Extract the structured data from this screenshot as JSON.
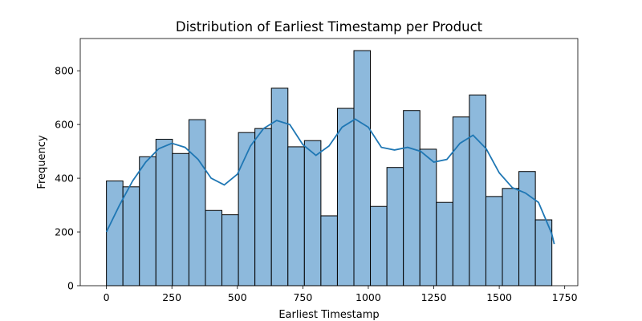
{
  "chart_data": {
    "type": "bar",
    "subtype": "histogram_with_kde",
    "title": "Distribution of Earliest Timestamp per Product",
    "xlabel": "Earliest Timestamp",
    "ylabel": "Frequency",
    "xlim": [
      -100,
      1800
    ],
    "ylim": [
      0,
      920
    ],
    "xticks": [
      0,
      250,
      500,
      750,
      1000,
      1250,
      1500,
      1750
    ],
    "yticks": [
      0,
      200,
      400,
      600,
      800
    ],
    "grid": false,
    "bin_edges": [
      0,
      63,
      126,
      189,
      252,
      315,
      378,
      441,
      504,
      567,
      630,
      693,
      756,
      819,
      882,
      945,
      1008,
      1071,
      1134,
      1197,
      1260,
      1323,
      1386,
      1449,
      1512,
      1575,
      1638,
      1701
    ],
    "values": [
      390,
      368,
      480,
      545,
      492,
      618,
      280,
      264,
      570,
      585,
      735,
      517,
      540,
      260,
      660,
      875,
      295,
      440,
      652,
      508,
      310,
      628,
      710,
      332,
      362,
      425,
      245
    ],
    "kde": {
      "x": [
        0,
        50,
        100,
        150,
        200,
        250,
        300,
        350,
        400,
        450,
        500,
        550,
        600,
        650,
        700,
        750,
        800,
        850,
        900,
        950,
        1000,
        1050,
        1100,
        1150,
        1200,
        1250,
        1300,
        1350,
        1400,
        1450,
        1500,
        1550,
        1600,
        1650,
        1700,
        1710
      ],
      "y": [
        200,
        300,
        390,
        460,
        510,
        530,
        515,
        470,
        400,
        375,
        415,
        520,
        585,
        615,
        600,
        525,
        485,
        520,
        590,
        620,
        590,
        515,
        505,
        515,
        500,
        460,
        470,
        530,
        560,
        510,
        420,
        365,
        345,
        310,
        195,
        155
      ]
    },
    "colors": {
      "bar_fill": "#8db9dc",
      "bar_edge": "#000000",
      "kde_line": "#1f77b4"
    }
  }
}
